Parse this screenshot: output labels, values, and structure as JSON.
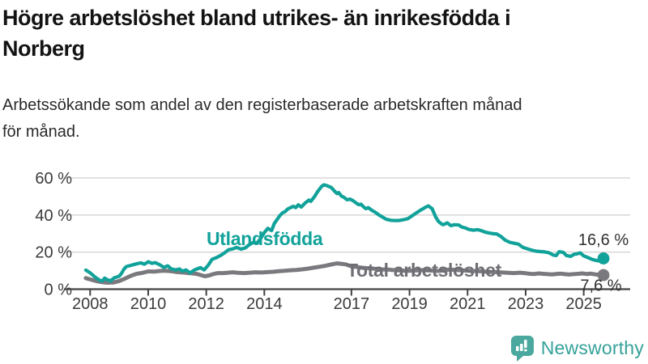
{
  "header": {
    "title": "Högre arbetslöshet bland utrikes- än inrikesfödda i Norberg",
    "title_lines": [
      "Högre arbetslöshet bland utrikes- än inrikesfödda i",
      "Norberg"
    ],
    "subtitle": "Arbetssökande som andel av den registerbaserade arbetskraften månad för månad.",
    "subtitle_lines": [
      "Arbetssökande som andel av den registerbaserade arbetskraften månad",
      "för månad."
    ]
  },
  "footer": {
    "brand": "Newsworthy",
    "brand_color": "#36a199",
    "icon": "bar-chart-speech-bubble-icon",
    "icon_color": "#4aa89e"
  },
  "chart_data": {
    "type": "line",
    "title": "Högre arbetslöshet bland utrikes- än inrikesfödda i Norberg",
    "subtitle": "Arbetssökande som andel av den registerbaserade arbetskraften månad för månad.",
    "xlabel": "",
    "ylabel": "",
    "grid": true,
    "legend_position": "inline-labels",
    "x_ticks": [
      2008,
      2010,
      2012,
      2014,
      2017,
      2019,
      2021,
      2023,
      2025
    ],
    "y_ticks": [
      0,
      20,
      40,
      60
    ],
    "y_tick_suffix": " %",
    "ylim": [
      0,
      60
    ],
    "xlim": [
      2007.1,
      2026.6
    ],
    "axis_color": "#424242",
    "grid_color": "#d9d9d9",
    "tick_text_color": "#3b3b3b",
    "end_label_color": "#303030",
    "series": [
      {
        "name": "Total arbetslöshet",
        "color": "#7a7a7e",
        "label_color": "#6e6e74",
        "end_label": "7,6 %",
        "end_value": 7.6,
        "points": [
          [
            2007.85,
            6.0
          ],
          [
            2008.0,
            5.3
          ],
          [
            2008.2,
            4.4
          ],
          [
            2008.4,
            3.8
          ],
          [
            2008.6,
            3.5
          ],
          [
            2008.8,
            3.6
          ],
          [
            2009.0,
            4.4
          ],
          [
            2009.2,
            5.7
          ],
          [
            2009.4,
            7.2
          ],
          [
            2009.6,
            8.3
          ],
          [
            2009.8,
            8.8
          ],
          [
            2010.0,
            9.6
          ],
          [
            2010.2,
            9.5
          ],
          [
            2010.4,
            9.8
          ],
          [
            2010.55,
            10.0
          ],
          [
            2010.7,
            9.8
          ],
          [
            2010.85,
            9.6
          ],
          [
            2011.0,
            9.2
          ],
          [
            2011.2,
            9.0
          ],
          [
            2011.4,
            8.7
          ],
          [
            2011.55,
            8.5
          ],
          [
            2011.7,
            8.1
          ],
          [
            2011.85,
            7.4
          ],
          [
            2011.95,
            7.0
          ],
          [
            2012.1,
            7.4
          ],
          [
            2012.25,
            8.2
          ],
          [
            2012.4,
            8.7
          ],
          [
            2012.6,
            8.7
          ],
          [
            2012.75,
            8.9
          ],
          [
            2012.9,
            9.1
          ],
          [
            2013.1,
            8.8
          ],
          [
            2013.3,
            8.7
          ],
          [
            2013.5,
            8.9
          ],
          [
            2013.7,
            9.1
          ],
          [
            2013.9,
            9.0
          ],
          [
            2014.1,
            9.2
          ],
          [
            2014.3,
            9.4
          ],
          [
            2014.5,
            9.7
          ],
          [
            2014.7,
            9.9
          ],
          [
            2014.9,
            10.2
          ],
          [
            2015.1,
            10.4
          ],
          [
            2015.3,
            10.7
          ],
          [
            2015.5,
            11.1
          ],
          [
            2015.7,
            11.6
          ],
          [
            2015.9,
            12.1
          ],
          [
            2016.1,
            12.6
          ],
          [
            2016.3,
            13.3
          ],
          [
            2016.5,
            13.9
          ],
          [
            2016.65,
            13.7
          ],
          [
            2016.8,
            13.4
          ],
          [
            2017.0,
            12.3
          ],
          [
            2017.2,
            11.9
          ],
          [
            2017.4,
            11.5
          ],
          [
            2017.6,
            11.3
          ],
          [
            2017.8,
            11.0
          ],
          [
            2018.0,
            10.6
          ],
          [
            2018.2,
            10.7
          ],
          [
            2018.4,
            10.4
          ],
          [
            2018.6,
            10.2
          ],
          [
            2018.8,
            10.0
          ],
          [
            2019.0,
            9.9
          ],
          [
            2019.2,
            10.1
          ],
          [
            2019.4,
            10.3
          ],
          [
            2019.6,
            10.2
          ],
          [
            2019.8,
            10.0
          ],
          [
            2020.0,
            9.8
          ],
          [
            2020.2,
            10.3
          ],
          [
            2020.4,
            10.6
          ],
          [
            2020.6,
            10.4
          ],
          [
            2020.8,
            10.2
          ],
          [
            2021.0,
            10.0
          ],
          [
            2021.2,
            9.8
          ],
          [
            2021.4,
            9.7
          ],
          [
            2021.6,
            9.5
          ],
          [
            2021.8,
            9.3
          ],
          [
            2022.0,
            9.2
          ],
          [
            2022.2,
            9.0
          ],
          [
            2022.4,
            8.8
          ],
          [
            2022.6,
            8.7
          ],
          [
            2022.8,
            8.9
          ],
          [
            2023.0,
            8.6
          ],
          [
            2023.15,
            8.3
          ],
          [
            2023.3,
            8.2
          ],
          [
            2023.45,
            8.5
          ],
          [
            2023.6,
            8.3
          ],
          [
            2023.75,
            8.1
          ],
          [
            2023.9,
            8.0
          ],
          [
            2024.05,
            8.2
          ],
          [
            2024.2,
            8.4
          ],
          [
            2024.35,
            8.1
          ],
          [
            2024.5,
            7.9
          ],
          [
            2024.65,
            8.1
          ],
          [
            2024.8,
            8.3
          ],
          [
            2024.95,
            8.5
          ],
          [
            2025.1,
            8.2
          ],
          [
            2025.25,
            8.4
          ],
          [
            2025.4,
            8.0
          ],
          [
            2025.55,
            7.8
          ],
          [
            2025.68,
            7.6
          ]
        ]
      },
      {
        "name": "Utlandsfödda",
        "color": "#11a29a",
        "label_color": "#11a29a",
        "end_label": "16,6 %",
        "end_value": 16.6,
        "points": [
          [
            2007.85,
            10.3
          ],
          [
            2008.0,
            8.8
          ],
          [
            2008.17,
            6.5
          ],
          [
            2008.33,
            4.8
          ],
          [
            2008.42,
            4.4
          ],
          [
            2008.5,
            6.0
          ],
          [
            2008.58,
            5.2
          ],
          [
            2008.7,
            4.5
          ],
          [
            2008.83,
            6.1
          ],
          [
            2009.0,
            7.0
          ],
          [
            2009.08,
            8.5
          ],
          [
            2009.17,
            10.9
          ],
          [
            2009.25,
            12.2
          ],
          [
            2009.42,
            12.9
          ],
          [
            2009.58,
            13.6
          ],
          [
            2009.75,
            14.2
          ],
          [
            2009.87,
            13.5
          ],
          [
            2010.0,
            14.8
          ],
          [
            2010.13,
            13.9
          ],
          [
            2010.25,
            14.3
          ],
          [
            2010.42,
            13.0
          ],
          [
            2010.54,
            11.7
          ],
          [
            2010.67,
            12.6
          ],
          [
            2010.8,
            10.9
          ],
          [
            2010.95,
            10.4
          ],
          [
            2011.08,
            10.9
          ],
          [
            2011.17,
            9.7
          ],
          [
            2011.3,
            10.4
          ],
          [
            2011.45,
            8.8
          ],
          [
            2011.58,
            10.3
          ],
          [
            2011.68,
            10.9
          ],
          [
            2011.8,
            11.6
          ],
          [
            2011.93,
            10.4
          ],
          [
            2012.07,
            13.0
          ],
          [
            2012.2,
            16.1
          ],
          [
            2012.35,
            17.0
          ],
          [
            2012.5,
            18.3
          ],
          [
            2012.63,
            19.6
          ],
          [
            2012.77,
            21.3
          ],
          [
            2012.9,
            21.7
          ],
          [
            2013.05,
            22.5
          ],
          [
            2013.2,
            21.6
          ],
          [
            2013.35,
            22.3
          ],
          [
            2013.46,
            23.8
          ],
          [
            2013.64,
            25.4
          ],
          [
            2013.74,
            24.7
          ],
          [
            2013.88,
            27.5
          ],
          [
            2014.0,
            30.5
          ],
          [
            2014.12,
            32.8
          ],
          [
            2014.25,
            31.6
          ],
          [
            2014.34,
            35.3
          ],
          [
            2014.43,
            37.4
          ],
          [
            2014.53,
            39.6
          ],
          [
            2014.62,
            41.1
          ],
          [
            2014.71,
            41.8
          ],
          [
            2014.81,
            43.3
          ],
          [
            2014.9,
            44.0
          ],
          [
            2015.0,
            44.7
          ],
          [
            2015.08,
            44.0
          ],
          [
            2015.17,
            45.5
          ],
          [
            2015.27,
            44.3
          ],
          [
            2015.4,
            46.4
          ],
          [
            2015.54,
            48.1
          ],
          [
            2015.6,
            47.4
          ],
          [
            2015.73,
            50.0
          ],
          [
            2015.83,
            52.5
          ],
          [
            2015.97,
            55.4
          ],
          [
            2016.05,
            56.3
          ],
          [
            2016.15,
            55.9
          ],
          [
            2016.3,
            54.9
          ],
          [
            2016.4,
            53.2
          ],
          [
            2016.5,
            51.6
          ],
          [
            2016.56,
            52.1
          ],
          [
            2016.65,
            50.3
          ],
          [
            2016.75,
            49.5
          ],
          [
            2016.85,
            48.2
          ],
          [
            2016.95,
            48.6
          ],
          [
            2017.05,
            47.8
          ],
          [
            2017.15,
            46.6
          ],
          [
            2017.25,
            45.6
          ],
          [
            2017.33,
            45.8
          ],
          [
            2017.42,
            44.4
          ],
          [
            2017.5,
            43.4
          ],
          [
            2017.58,
            44.0
          ],
          [
            2017.7,
            42.6
          ],
          [
            2017.82,
            41.5
          ],
          [
            2017.95,
            40.0
          ],
          [
            2018.05,
            39.1
          ],
          [
            2018.2,
            37.7
          ],
          [
            2018.35,
            37.2
          ],
          [
            2018.5,
            37.0
          ],
          [
            2018.65,
            37.1
          ],
          [
            2018.8,
            37.5
          ],
          [
            2018.95,
            38.1
          ],
          [
            2019.1,
            39.7
          ],
          [
            2019.25,
            41.3
          ],
          [
            2019.4,
            42.8
          ],
          [
            2019.55,
            44.2
          ],
          [
            2019.65,
            44.9
          ],
          [
            2019.78,
            43.4
          ],
          [
            2019.9,
            39.0
          ],
          [
            2020.0,
            36.5
          ],
          [
            2020.1,
            35.2
          ],
          [
            2020.16,
            34.8
          ],
          [
            2020.3,
            35.8
          ],
          [
            2020.42,
            34.3
          ],
          [
            2020.55,
            34.8
          ],
          [
            2020.7,
            34.6
          ],
          [
            2020.8,
            33.5
          ],
          [
            2020.93,
            33.0
          ],
          [
            2021.05,
            32.2
          ],
          [
            2021.2,
            31.8
          ],
          [
            2021.35,
            32.1
          ],
          [
            2021.5,
            31.4
          ],
          [
            2021.6,
            30.8
          ],
          [
            2021.75,
            30.3
          ],
          [
            2021.9,
            29.9
          ],
          [
            2022.0,
            29.8
          ],
          [
            2022.15,
            28.4
          ],
          [
            2022.3,
            26.4
          ],
          [
            2022.45,
            25.3
          ],
          [
            2022.6,
            24.8
          ],
          [
            2022.75,
            24.3
          ],
          [
            2022.9,
            22.6
          ],
          [
            2023.05,
            21.8
          ],
          [
            2023.2,
            21.1
          ],
          [
            2023.35,
            20.5
          ],
          [
            2023.5,
            20.3
          ],
          [
            2023.65,
            20.1
          ],
          [
            2023.8,
            19.7
          ],
          [
            2023.95,
            18.4
          ],
          [
            2024.05,
            18.1
          ],
          [
            2024.15,
            20.2
          ],
          [
            2024.3,
            19.8
          ],
          [
            2024.4,
            18.2
          ],
          [
            2024.55,
            17.7
          ],
          [
            2024.68,
            18.9
          ],
          [
            2024.75,
            19.0
          ],
          [
            2024.88,
            19.6
          ],
          [
            2025.0,
            18.0
          ],
          [
            2025.15,
            17.0
          ],
          [
            2025.3,
            16.0
          ],
          [
            2025.45,
            15.4
          ],
          [
            2025.55,
            15.2
          ],
          [
            2025.68,
            16.6
          ]
        ]
      }
    ]
  }
}
